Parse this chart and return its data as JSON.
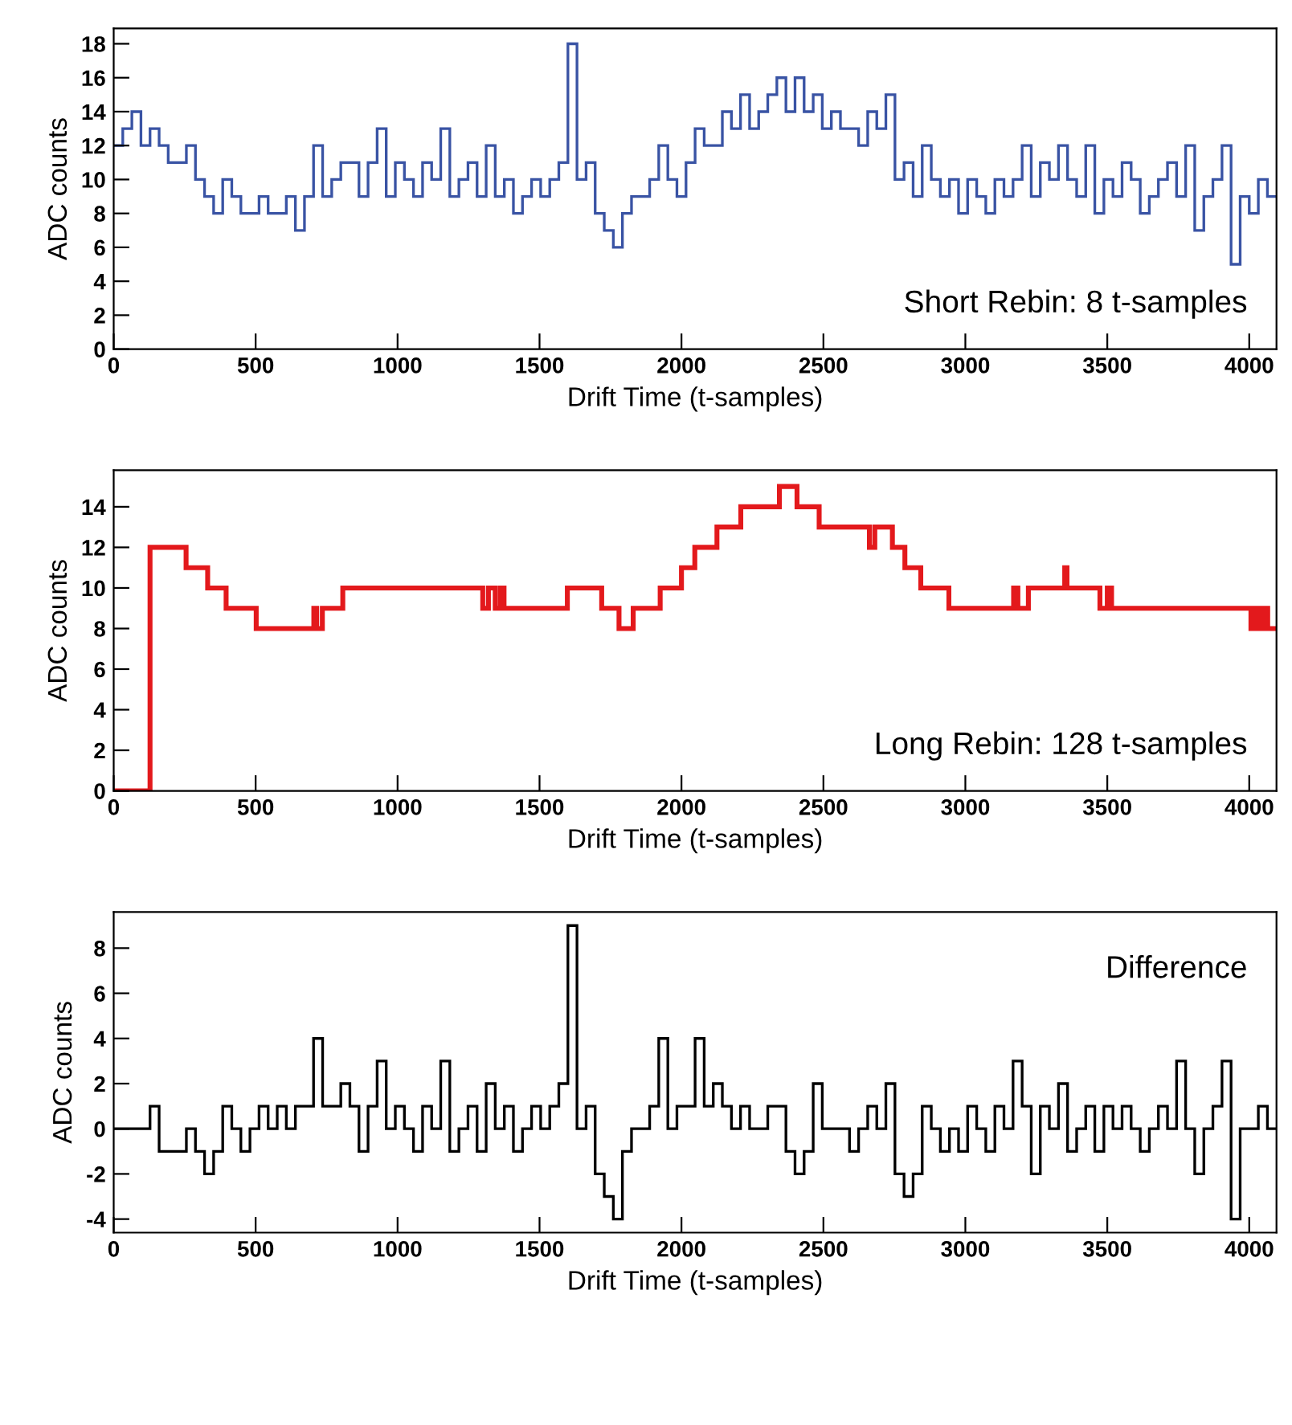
{
  "chart_data": [
    {
      "type": "histogram",
      "xlabel": "Drift Time (t-samples)",
      "ylabel": "ADC counts",
      "annotations": [
        "Short Rebin: 8 t-samples"
      ],
      "color": "#3953a4",
      "bins": [
        0,
        32,
        64,
        96,
        128,
        160,
        192,
        224,
        256,
        288,
        320,
        352,
        384,
        416,
        448,
        480,
        512,
        544,
        576,
        608,
        640,
        672,
        704,
        736,
        768,
        800,
        832,
        864,
        896,
        928,
        960,
        992,
        1024,
        1056,
        1088,
        1120,
        1152,
        1184,
        1216,
        1248,
        1280,
        1312,
        1344,
        1376,
        1408,
        1440,
        1472,
        1504,
        1536,
        1568,
        1600,
        1632,
        1664,
        1696,
        1728,
        1760,
        1792,
        1824,
        1856,
        1888,
        1920,
        1952,
        1984,
        2016,
        2048,
        2080,
        2112,
        2144,
        2176,
        2208,
        2240,
        2272,
        2304,
        2336,
        2368,
        2400,
        2432,
        2464,
        2496,
        2528,
        2560,
        2592,
        2624,
        2656,
        2688,
        2720,
        2752,
        2784,
        2816,
        2848,
        2880,
        2912,
        2944,
        2976,
        3008,
        3040,
        3072,
        3104,
        3136,
        3168,
        3200,
        3232,
        3264,
        3296,
        3328,
        3360,
        3392,
        3424,
        3456,
        3488,
        3520,
        3552,
        3584,
        3616,
        3648,
        3680,
        3712,
        3744,
        3776,
        3808,
        3840,
        3872,
        3904,
        3936,
        3968,
        4000,
        4032,
        4064,
        4096
      ],
      "values": [
        12,
        13,
        14,
        12,
        13,
        12,
        11,
        11,
        12,
        10,
        9,
        8,
        10,
        9,
        8,
        8,
        9,
        8,
        8,
        9,
        7,
        9,
        12,
        9,
        10,
        11,
        11,
        9,
        11,
        13,
        9,
        11,
        10,
        9,
        11,
        10,
        13,
        9,
        10,
        11,
        9,
        12,
        9,
        10,
        8,
        9,
        10,
        9,
        10,
        11,
        18,
        10,
        11,
        8,
        7,
        6,
        8,
        9,
        9,
        10,
        12,
        10,
        9,
        11,
        13,
        12,
        12,
        14,
        13,
        15,
        13,
        14,
        15,
        16,
        14,
        16,
        14,
        15,
        13,
        14,
        13,
        13,
        12,
        14,
        13,
        15,
        10,
        11,
        9,
        12,
        10,
        9,
        10,
        8,
        10,
        9,
        8,
        10,
        9,
        10,
        12,
        9,
        11,
        10,
        12,
        10,
        9,
        12,
        8,
        10,
        9,
        11,
        10,
        8,
        9,
        10,
        11,
        9,
        12,
        7,
        9,
        10,
        12,
        5,
        9,
        8,
        10,
        9
      ],
      "xlim": [
        0,
        4096
      ],
      "ylim": [
        0,
        18.9
      ],
      "xticks": [
        0,
        500,
        1000,
        1500,
        2000,
        2500,
        3000,
        3500,
        4000
      ],
      "yticks": [
        0,
        2,
        4,
        6,
        8,
        10,
        12,
        14,
        16,
        18
      ],
      "grid": false
    },
    {
      "type": "histogram",
      "xlabel": "Drift Time (t-samples)",
      "ylabel": "ADC counts",
      "annotations": [
        "Long Rebin: 128 t-samples"
      ],
      "color": "#e3191c",
      "bins": [
        0,
        128,
        255,
        331,
        396,
        502,
        705,
        715,
        735,
        807,
        1300,
        1320,
        1344,
        1362,
        1375,
        1598,
        1719,
        1780,
        1830,
        1925,
        2000,
        2047,
        2125,
        2209,
        2345,
        2407,
        2485,
        2662,
        2681,
        2743,
        2787,
        2843,
        2942,
        3170,
        3185,
        3222,
        3350,
        3358,
        3474,
        3500,
        3515,
        4006,
        4020,
        4035,
        4050,
        4065,
        4096
      ],
      "values": [
        0,
        12,
        11,
        10,
        9,
        8,
        9,
        8,
        9,
        10,
        9,
        10,
        9,
        10,
        9,
        10,
        9,
        8,
        9,
        10,
        11,
        12,
        13,
        14,
        15,
        14,
        13,
        12,
        13,
        12,
        11,
        10,
        9,
        10,
        9,
        10,
        11,
        10,
        9,
        10,
        9,
        8,
        9,
        8,
        9,
        8
      ],
      "xlim": [
        0,
        4096
      ],
      "ylim": [
        0,
        15.8
      ],
      "xticks": [
        0,
        500,
        1000,
        1500,
        2000,
        2500,
        3000,
        3500,
        4000
      ],
      "yticks": [
        0,
        2,
        4,
        6,
        8,
        10,
        12,
        14
      ],
      "grid": false
    },
    {
      "type": "histogram",
      "xlabel": "Drift Time (t-samples)",
      "ylabel": "ADC counts",
      "annotations": [
        "Difference"
      ],
      "color": "#000000",
      "bins": [
        0,
        32,
        64,
        96,
        128,
        160,
        192,
        224,
        256,
        288,
        320,
        352,
        384,
        416,
        448,
        480,
        512,
        544,
        576,
        608,
        640,
        672,
        704,
        736,
        768,
        800,
        832,
        864,
        896,
        928,
        960,
        992,
        1024,
        1056,
        1088,
        1120,
        1152,
        1184,
        1216,
        1248,
        1280,
        1312,
        1344,
        1376,
        1408,
        1440,
        1472,
        1504,
        1536,
        1568,
        1600,
        1632,
        1664,
        1696,
        1728,
        1760,
        1792,
        1824,
        1856,
        1888,
        1920,
        1952,
        1984,
        2016,
        2048,
        2080,
        2112,
        2144,
        2176,
        2208,
        2240,
        2272,
        2304,
        2336,
        2368,
        2400,
        2432,
        2464,
        2496,
        2528,
        2560,
        2592,
        2624,
        2656,
        2688,
        2720,
        2752,
        2784,
        2816,
        2848,
        2880,
        2912,
        2944,
        2976,
        3008,
        3040,
        3072,
        3104,
        3136,
        3168,
        3200,
        3232,
        3264,
        3296,
        3328,
        3360,
        3392,
        3424,
        3456,
        3488,
        3520,
        3552,
        3584,
        3616,
        3648,
        3680,
        3712,
        3744,
        3776,
        3808,
        3840,
        3872,
        3904,
        3936,
        3968,
        4000,
        4032,
        4064,
        4096
      ],
      "values": [
        0,
        0,
        0,
        0,
        1,
        -1,
        -1,
        -1,
        0,
        -1,
        -2,
        -1,
        1,
        0,
        -1,
        0,
        1,
        0,
        1,
        0,
        1,
        1,
        4,
        1,
        1,
        2,
        1,
        -1,
        1,
        3,
        0,
        1,
        0,
        -1,
        1,
        0,
        3,
        -1,
        0,
        1,
        -1,
        2,
        0,
        1,
        -1,
        0,
        1,
        0,
        1,
        2,
        9,
        0,
        1,
        -2,
        -3,
        -4,
        -1,
        0,
        0,
        1,
        4,
        0,
        1,
        1,
        4,
        1,
        2,
        1,
        0,
        1,
        0,
        0,
        1,
        1,
        -1,
        -2,
        -1,
        2,
        0,
        0,
        0,
        -1,
        0,
        1,
        0,
        2,
        -2,
        -3,
        -2,
        1,
        0,
        -1,
        0,
        -1,
        1,
        0,
        -1,
        1,
        0,
        3,
        1,
        -2,
        1,
        0,
        2,
        -1,
        0,
        1,
        -1,
        1,
        0,
        1,
        0,
        -1,
        0,
        1,
        0,
        3,
        0,
        -2,
        0,
        1,
        3,
        -4,
        0,
        0,
        1,
        0
      ],
      "xlim": [
        0,
        4096
      ],
      "ylim": [
        -4.6,
        9.6
      ],
      "xticks": [
        0,
        500,
        1000,
        1500,
        2000,
        2500,
        3000,
        3500,
        4000
      ],
      "yticks": [
        -4,
        -2,
        0,
        2,
        4,
        6,
        8
      ],
      "grid": false
    }
  ]
}
